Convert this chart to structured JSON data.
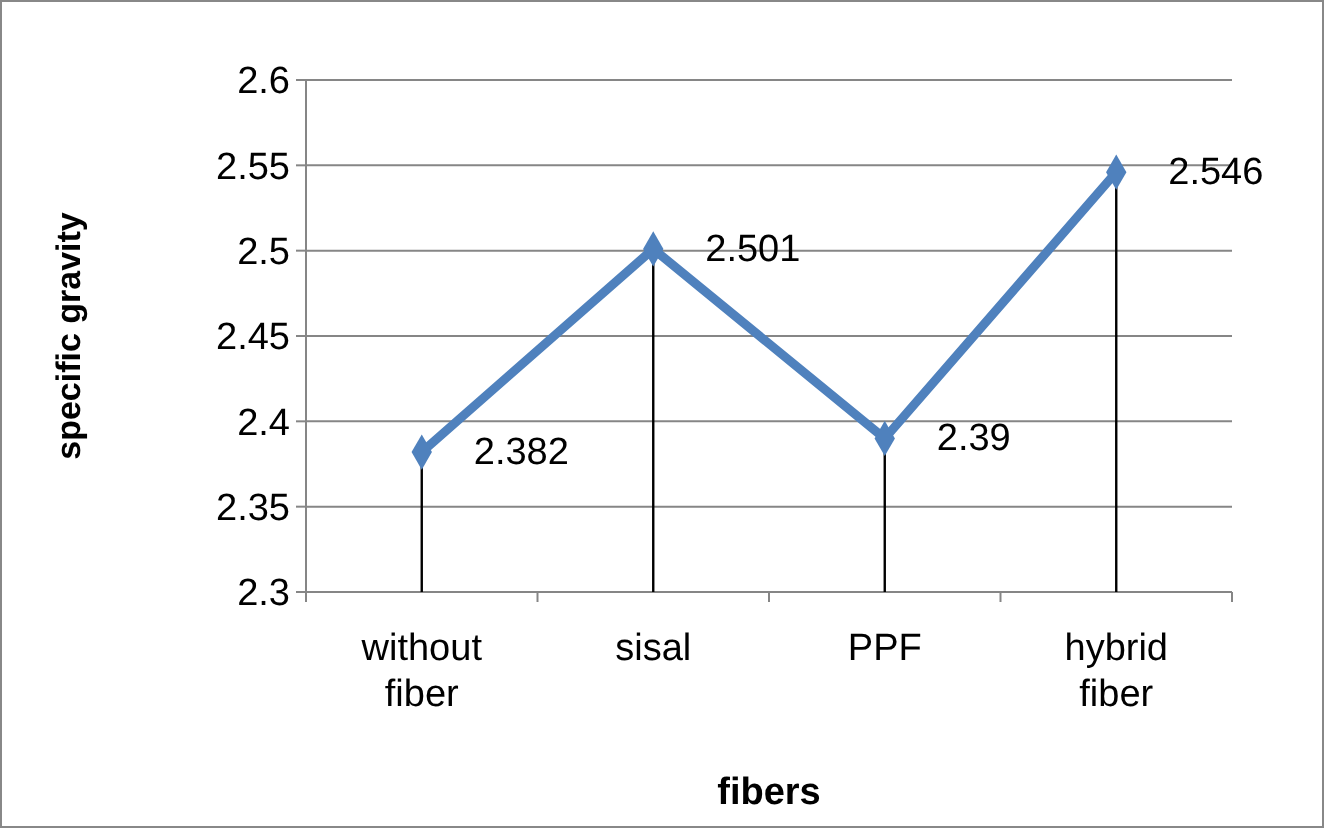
{
  "chart_data": {
    "type": "line",
    "xlabel": "fibers",
    "ylabel": "specific gravity",
    "categories": [
      "without fiber",
      "sisal",
      "PPF",
      "hybrid fiber"
    ],
    "series": [
      {
        "color": "#4f81bd",
        "values": [
          2.382,
          2.501,
          2.39,
          2.546
        ],
        "errors": [
          [
            2.3,
            2.382
          ],
          [
            2.3,
            2.501
          ],
          [
            2.3,
            2.39
          ],
          [
            2.3,
            2.546
          ]
        ]
      }
    ],
    "ylim": [
      2.3,
      2.6
    ],
    "yticks": [
      2.3,
      2.35,
      2.4,
      2.45,
      2.5,
      2.55,
      2.6
    ],
    "grid": "y",
    "marker": "diamond",
    "line_style": "solid",
    "data_labels": true
  }
}
